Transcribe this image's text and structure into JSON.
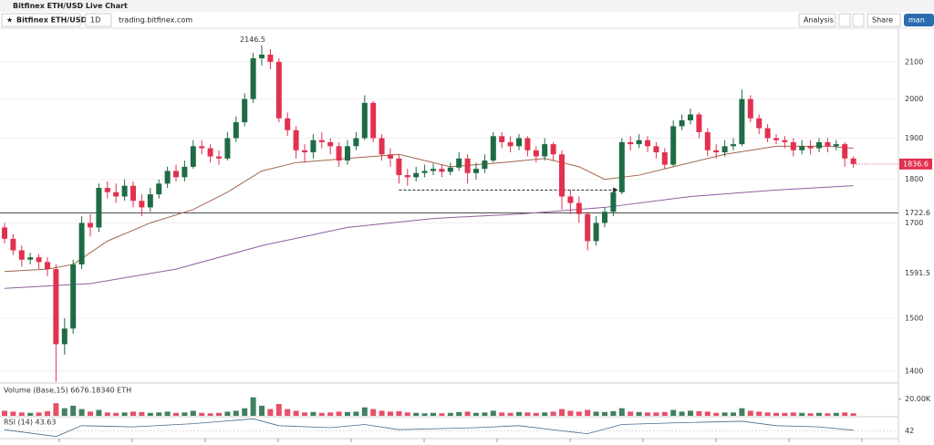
{
  "page": {
    "window_title": "Bitfinex ETH/USD Live Chart",
    "symbol": "Bitfinex ETH/USD",
    "interval": "1D",
    "source": "trading.bitfinex.com",
    "analysis": "Analysis",
    "share": "Share",
    "user": "man"
  },
  "chart_data": [
    {
      "type": "candlestick",
      "annotation": {
        "value": 2146.5,
        "label": "2146.5"
      },
      "log_scale": true,
      "ylim": [
        1378,
        2192
      ],
      "yticks": [
        1400,
        1500,
        1700,
        1800,
        1900,
        2000,
        2100
      ],
      "price_levels": [
        1591.5,
        1722.6
      ],
      "last_price": 1836.6,
      "measure_line": {
        "from": 46,
        "to": 71,
        "value": 1775
      },
      "up_color": "#1e6b45",
      "down_color": "#e2314f",
      "open": [
        1690,
        1665,
        1640,
        1620,
        1625,
        1615,
        1600,
        1450,
        1480,
        1610,
        1700,
        1690,
        1780,
        1770,
        1760,
        1785,
        1750,
        1735,
        1765,
        1790,
        1820,
        1805,
        1830,
        1880,
        1875,
        1855,
        1850,
        1900,
        1940,
        2000,
        2110,
        2120,
        2100,
        1950,
        1920,
        1870,
        1865,
        1895,
        1890,
        1880,
        1845,
        1880,
        1900,
        1990,
        1900,
        1860,
        1850,
        1810,
        1805,
        1815,
        1820,
        1825,
        1818,
        1828,
        1850,
        1815,
        1825,
        1845,
        1905,
        1890,
        1880,
        1900,
        1870,
        1855,
        1885,
        1860,
        1760,
        1745,
        1720,
        1660,
        1700,
        1725,
        1770,
        1890,
        1885,
        1895,
        1880,
        1865,
        1835,
        1930,
        1945,
        1960,
        1915,
        1870,
        1865,
        1880,
        1885,
        2000,
        1950,
        1925,
        1900,
        1895,
        1890,
        1870,
        1880,
        1875,
        1890,
        1880,
        1885,
        1850
      ],
      "high": [
        1700,
        1675,
        1650,
        1635,
        1632,
        1625,
        1610,
        1500,
        1620,
        1715,
        1720,
        1790,
        1795,
        1790,
        1800,
        1795,
        1765,
        1780,
        1800,
        1830,
        1835,
        1845,
        1895,
        1895,
        1885,
        1870,
        1915,
        1955,
        2015,
        2125,
        2146.5,
        2135,
        2110,
        1965,
        1930,
        1885,
        1910,
        1915,
        1900,
        1890,
        1895,
        1915,
        2010,
        1995,
        1910,
        1875,
        1860,
        1825,
        1830,
        1835,
        1838,
        1835,
        1840,
        1865,
        1860,
        1840,
        1860,
        1915,
        1915,
        1905,
        1910,
        1905,
        1880,
        1900,
        1890,
        1870,
        1775,
        1760,
        1725,
        1715,
        1735,
        1780,
        1900,
        1905,
        1910,
        1905,
        1890,
        1875,
        1945,
        1960,
        1975,
        1965,
        1925,
        1885,
        1895,
        1900,
        2025,
        2010,
        1960,
        1935,
        1910,
        1905,
        1900,
        1895,
        1895,
        1900,
        1900,
        1895,
        1890,
        1855
      ],
      "low": [
        1655,
        1630,
        1605,
        1610,
        1600,
        1585,
        1380,
        1430,
        1470,
        1600,
        1670,
        1680,
        1755,
        1745,
        1750,
        1735,
        1715,
        1725,
        1755,
        1780,
        1795,
        1795,
        1825,
        1860,
        1840,
        1835,
        1845,
        1890,
        1930,
        1990,
        2090,
        2080,
        1940,
        1905,
        1850,
        1840,
        1850,
        1875,
        1860,
        1830,
        1835,
        1870,
        1895,
        1890,
        1845,
        1830,
        1790,
        1785,
        1795,
        1805,
        1810,
        1805,
        1810,
        1820,
        1790,
        1800,
        1815,
        1840,
        1875,
        1865,
        1870,
        1855,
        1840,
        1845,
        1845,
        1730,
        1720,
        1700,
        1640,
        1650,
        1690,
        1715,
        1765,
        1870,
        1875,
        1865,
        1850,
        1825,
        1830,
        1920,
        1935,
        1900,
        1855,
        1850,
        1855,
        1870,
        1880,
        1940,
        1910,
        1890,
        1885,
        1875,
        1855,
        1860,
        1860,
        1865,
        1865,
        1870,
        1830,
        1828
      ],
      "close": [
        1665,
        1640,
        1620,
        1625,
        1615,
        1600,
        1450,
        1480,
        1610,
        1700,
        1690,
        1780,
        1770,
        1760,
        1785,
        1750,
        1735,
        1765,
        1790,
        1820,
        1805,
        1830,
        1880,
        1875,
        1855,
        1850,
        1900,
        1940,
        2000,
        2110,
        2120,
        2100,
        1950,
        1920,
        1870,
        1865,
        1895,
        1890,
        1880,
        1845,
        1880,
        1900,
        1990,
        1900,
        1860,
        1850,
        1810,
        1805,
        1815,
        1820,
        1825,
        1818,
        1828,
        1850,
        1815,
        1825,
        1845,
        1905,
        1890,
        1880,
        1900,
        1870,
        1855,
        1885,
        1860,
        1760,
        1745,
        1720,
        1660,
        1700,
        1725,
        1770,
        1890,
        1885,
        1895,
        1880,
        1865,
        1835,
        1930,
        1945,
        1960,
        1915,
        1870,
        1865,
        1880,
        1885,
        2000,
        1950,
        1925,
        1900,
        1895,
        1890,
        1870,
        1880,
        1875,
        1890,
        1880,
        1885,
        1850,
        1836.6
      ],
      "series": [
        {
          "color": "#a0674b",
          "x": [
            0,
            5,
            8,
            12,
            17,
            22,
            26,
            30,
            34,
            40,
            46,
            52,
            58,
            63,
            67,
            70,
            74,
            78,
            84,
            90,
            96,
            99
          ],
          "values": [
            1595,
            1600,
            1610,
            1660,
            1700,
            1730,
            1770,
            1820,
            1840,
            1850,
            1860,
            1830,
            1840,
            1850,
            1830,
            1800,
            1810,
            1830,
            1860,
            1880,
            1880,
            1875
          ]
        },
        {
          "color": "#8e5ea2",
          "x": [
            0,
            10,
            20,
            30,
            40,
            50,
            60,
            70,
            80,
            90,
            99
          ],
          "values": [
            1560,
            1570,
            1600,
            1650,
            1690,
            1710,
            1720,
            1735,
            1760,
            1775,
            1785
          ]
        }
      ]
    },
    {
      "type": "bar",
      "title": "Volume (Base,15) 6676.18340 ETH",
      "ylim": [
        0,
        39000
      ],
      "yticks": [
        {
          "value": 20000,
          "label": "20.00K"
        }
      ],
      "values": [
        6000,
        5000,
        4000,
        3500,
        4000,
        5500,
        15000,
        9000,
        12000,
        8000,
        5000,
        7000,
        4000,
        3500,
        4000,
        5000,
        4500,
        3500,
        4000,
        5000,
        3500,
        4000,
        6000,
        3500,
        3000,
        3500,
        5000,
        6000,
        9000,
        22000,
        12000,
        8000,
        14000,
        8000,
        6000,
        4000,
        4500,
        3500,
        4000,
        5000,
        4500,
        5000,
        10000,
        8000,
        6000,
        5000,
        5500,
        4000,
        3500,
        3000,
        3500,
        3000,
        3500,
        4500,
        5000,
        3500,
        4000,
        6000,
        4000,
        3500,
        4500,
        4000,
        3500,
        4000,
        5000,
        8000,
        6000,
        5000,
        7000,
        5000,
        4500,
        5500,
        9000,
        5000,
        4500,
        4000,
        4000,
        4500,
        7000,
        5000,
        6000,
        5500,
        5000,
        3500,
        4000,
        4000,
        9000,
        6000,
        5000,
        4000,
        3500,
        3500,
        4000,
        3500,
        3000,
        3500,
        3000,
        3500,
        4000,
        3000
      ]
    },
    {
      "type": "line",
      "title": "RSI (14) 43.63",
      "ylim": [
        25,
        75
      ],
      "yticks": [
        42
      ],
      "color": "#4a6b8a",
      "x": [
        0,
        6,
        9,
        15,
        22,
        29,
        32,
        38,
        42,
        46,
        55,
        60,
        65,
        68,
        72,
        78,
        86,
        90,
        95,
        99
      ],
      "values": [
        45,
        28,
        55,
        52,
        60,
        72,
        55,
        50,
        58,
        45,
        50,
        55,
        42,
        35,
        58,
        62,
        66,
        55,
        52,
        43.63
      ]
    }
  ]
}
